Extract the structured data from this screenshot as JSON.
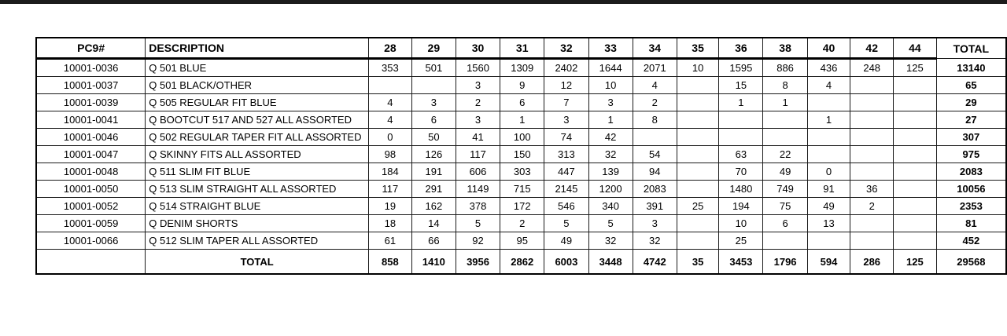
{
  "page": {
    "background": "#ffffff",
    "top_bar_color": "#1c1c1c",
    "text_color": "#000000"
  },
  "table": {
    "columns": [
      "PC9#",
      "DESCRIPTION",
      "28",
      "29",
      "30",
      "31",
      "32",
      "33",
      "34",
      "35",
      "36",
      "38",
      "40",
      "42",
      "44",
      "TOTAL"
    ],
    "rows": [
      {
        "pc9": "10001-0036",
        "description": "Q 501 BLUE",
        "sizes": [
          "353",
          "501",
          "1560",
          "1309",
          "2402",
          "1644",
          "2071",
          "10",
          "1595",
          "886",
          "436",
          "248",
          "125"
        ],
        "total": "13140"
      },
      {
        "pc9": "10001-0037",
        "description": "Q 501 BLACK/OTHER",
        "sizes": [
          "",
          "",
          "3",
          "9",
          "12",
          "10",
          "4",
          "",
          "15",
          "8",
          "4",
          "",
          ""
        ],
        "total": "65"
      },
      {
        "pc9": "10001-0039",
        "description": "Q 505 REGULAR FIT BLUE",
        "sizes": [
          "4",
          "3",
          "2",
          "6",
          "7",
          "3",
          "2",
          "",
          "1",
          "1",
          "",
          "",
          ""
        ],
        "total": "29"
      },
      {
        "pc9": "10001-0041",
        "description": "Q BOOTCUT 517 AND 527 ALL ASSORTED",
        "sizes": [
          "4",
          "6",
          "3",
          "1",
          "3",
          "1",
          "8",
          "",
          "",
          "",
          "1",
          "",
          ""
        ],
        "total": "27"
      },
      {
        "pc9": "10001-0046",
        "description": "Q 502 REGULAR TAPER FIT ALL ASSORTED",
        "sizes": [
          "0",
          "50",
          "41",
          "100",
          "74",
          "42",
          "",
          "",
          "",
          "",
          "",
          "",
          ""
        ],
        "total": "307"
      },
      {
        "pc9": "10001-0047",
        "description": "Q SKINNY FITS ALL ASSORTED",
        "sizes": [
          "98",
          "126",
          "117",
          "150",
          "313",
          "32",
          "54",
          "",
          "63",
          "22",
          "",
          "",
          ""
        ],
        "total": "975"
      },
      {
        "pc9": "10001-0048",
        "description": "Q 511 SLIM FIT BLUE",
        "sizes": [
          "184",
          "191",
          "606",
          "303",
          "447",
          "139",
          "94",
          "",
          "70",
          "49",
          "0",
          "",
          ""
        ],
        "total": "2083"
      },
      {
        "pc9": "10001-0050",
        "description": "Q 513 SLIM STRAIGHT ALL ASSORTED",
        "sizes": [
          "117",
          "291",
          "1149",
          "715",
          "2145",
          "1200",
          "2083",
          "",
          "1480",
          "749",
          "91",
          "36",
          ""
        ],
        "total": "10056"
      },
      {
        "pc9": "10001-0052",
        "description": "Q 514 STRAIGHT BLUE",
        "sizes": [
          "19",
          "162",
          "378",
          "172",
          "546",
          "340",
          "391",
          "25",
          "194",
          "75",
          "49",
          "2",
          ""
        ],
        "total": "2353"
      },
      {
        "pc9": "10001-0059",
        "description": "Q DENIM SHORTS",
        "sizes": [
          "18",
          "14",
          "5",
          "2",
          "5",
          "5",
          "3",
          "",
          "10",
          "6",
          "13",
          "",
          ""
        ],
        "total": "81"
      },
      {
        "pc9": "10001-0066",
        "description": "Q 512 SLIM TAPER ALL ASSORTED",
        "sizes": [
          "61",
          "66",
          "92",
          "95",
          "49",
          "32",
          "32",
          "",
          "25",
          "",
          "",
          "",
          ""
        ],
        "total": "452"
      }
    ],
    "grand_total": {
      "label": "TOTAL",
      "sizes": [
        "858",
        "1410",
        "3956",
        "2862",
        "6003",
        "3448",
        "4742",
        "35",
        "3453",
        "1796",
        "594",
        "286",
        "125"
      ],
      "total": "29568"
    }
  }
}
